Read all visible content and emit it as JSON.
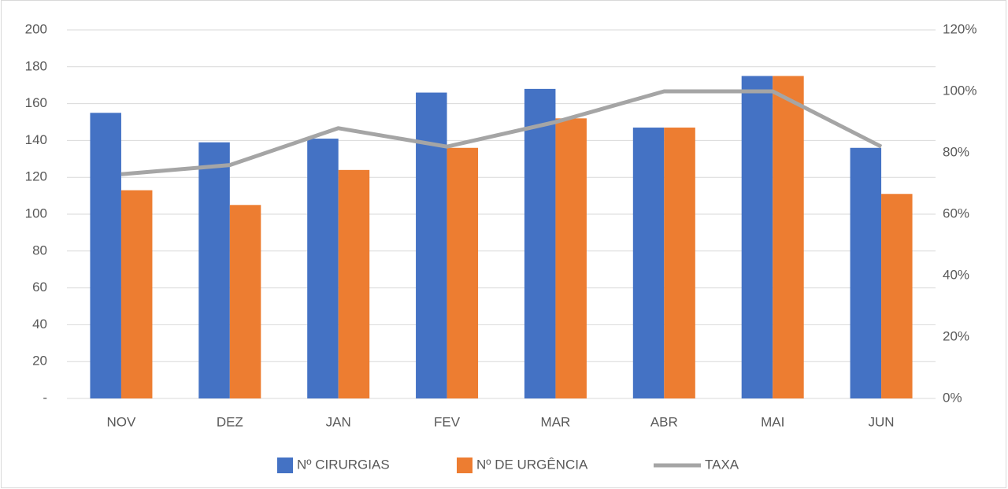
{
  "chart_data": {
    "type": "bar",
    "categories": [
      "NOV",
      "DEZ",
      "JAN",
      "FEV",
      "MAR",
      "ABR",
      "MAI",
      "JUN"
    ],
    "series": [
      {
        "name": "Nº CIRURGIAS",
        "color": "#4472c4",
        "type": "bar",
        "values": [
          155,
          139,
          141,
          166,
          168,
          147,
          175,
          136
        ]
      },
      {
        "name": "Nº DE URGÊNCIA",
        "color": "#ed7d31",
        "type": "bar",
        "values": [
          113,
          105,
          124,
          136,
          152,
          147,
          175,
          111
        ]
      },
      {
        "name": "TAXA",
        "color": "#a5a5a5",
        "type": "line",
        "axis": "y2",
        "values": [
          73,
          76,
          88,
          82,
          90,
          100,
          100,
          82
        ]
      }
    ],
    "ylim": [
      0,
      200
    ],
    "yticks": [
      {
        "value": 0,
        "label": "-"
      },
      20,
      40,
      60,
      80,
      100,
      120,
      140,
      160,
      180,
      200
    ],
    "y2lim": [
      0,
      120
    ],
    "y2ticks": [
      {
        "value": 0,
        "label": "0%"
      },
      {
        "value": 20,
        "label": "20%"
      },
      {
        "value": 40,
        "label": "40%"
      },
      {
        "value": 60,
        "label": "60%"
      },
      {
        "value": 80,
        "label": "80%"
      },
      {
        "value": 100,
        "label": "100%"
      },
      {
        "value": 120,
        "label": "120%"
      }
    ],
    "grid": true,
    "legend": "bottom"
  }
}
